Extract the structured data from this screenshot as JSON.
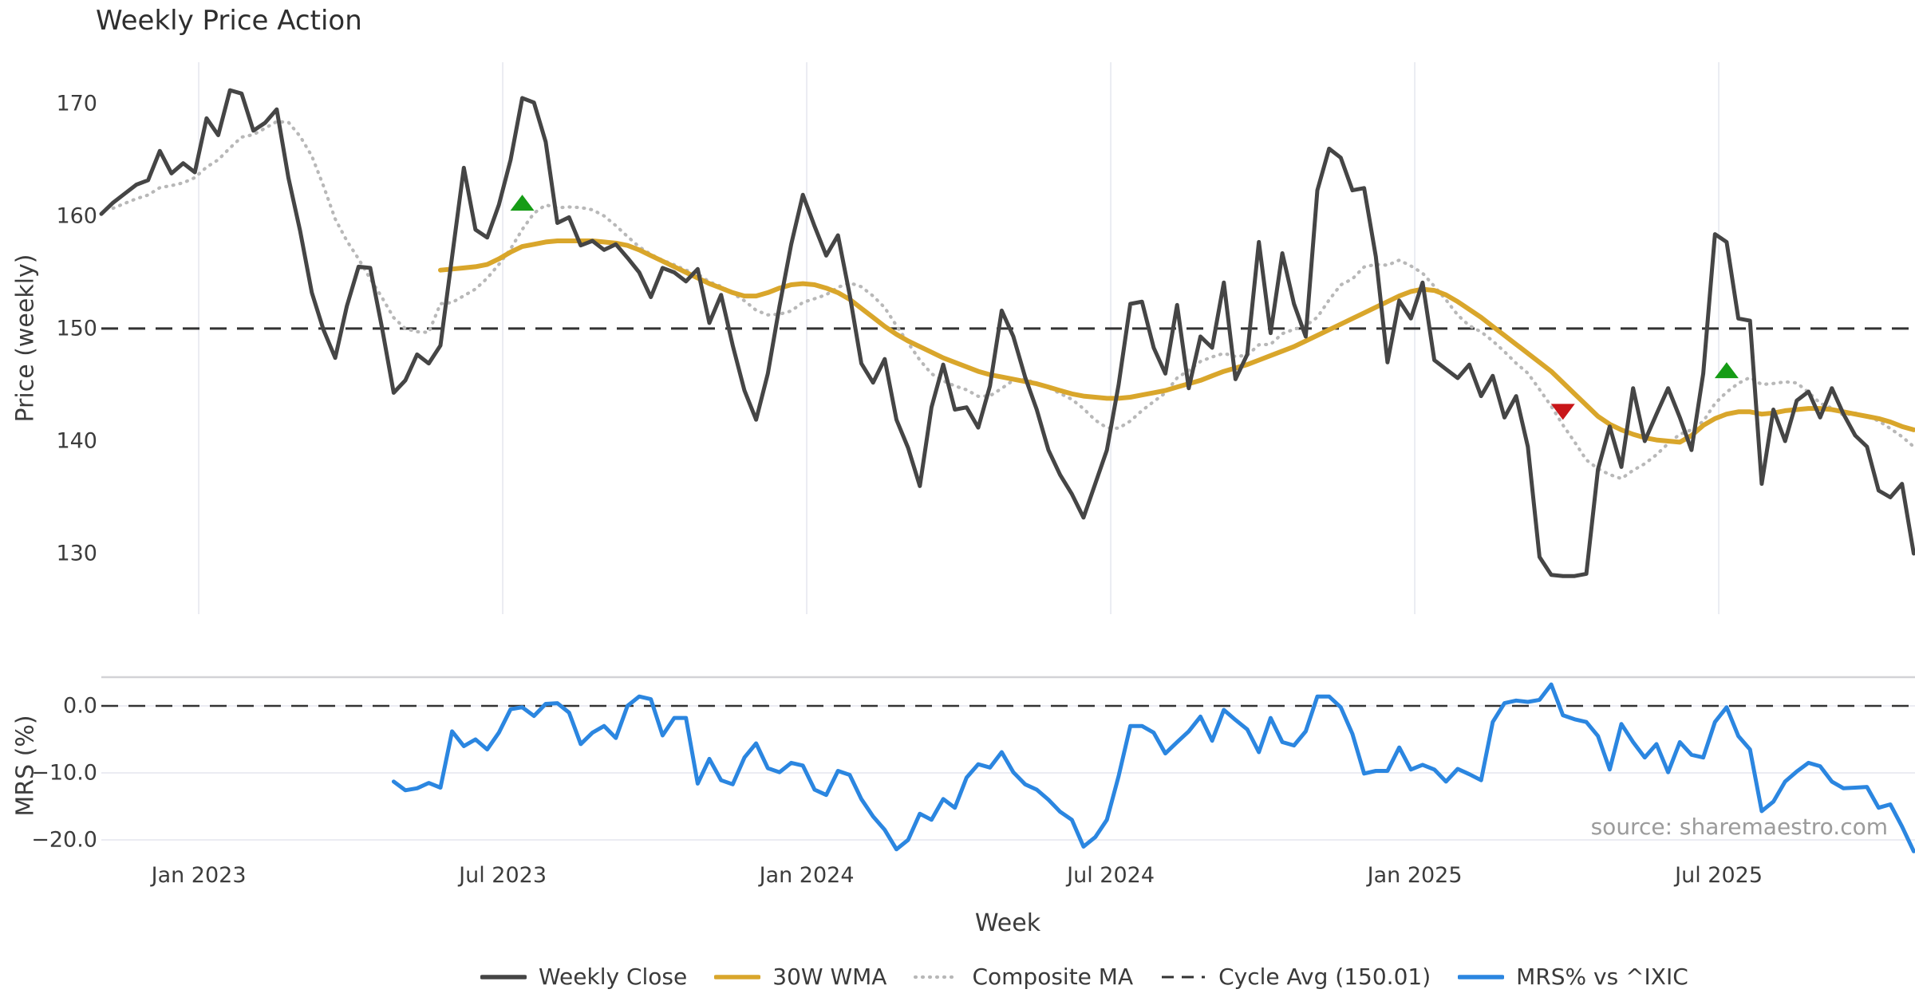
{
  "title": "Weekly Price Action",
  "watermark": "source: sharemaestro.com",
  "colors": {
    "close": "#454545",
    "wma": "#d9a62b",
    "composite": "#b8b8b8",
    "cycle": "#333333",
    "mrs": "#2b86e0",
    "buy": "#169c16",
    "sell": "#c81619",
    "grid": "#ebecf2",
    "divider": "#d2d2d6",
    "text": "#3c3c3c",
    "muted": "#9b9b9b"
  },
  "xaxis": {
    "label": "Week",
    "ticks": [
      {
        "week": 8.33,
        "label": "Jan 2023"
      },
      {
        "week": 34.33,
        "label": "Jul 2023"
      },
      {
        "week": 60.33,
        "label": "Jan 2024"
      },
      {
        "week": 86.33,
        "label": "Jul 2024"
      },
      {
        "week": 112.33,
        "label": "Jan 2025"
      },
      {
        "week": 138.33,
        "label": "Jul 2025"
      }
    ]
  },
  "legend": [
    {
      "label": "Weekly Close",
      "style": "solid",
      "color": "close"
    },
    {
      "label": "30W WMA",
      "style": "solid",
      "color": "wma"
    },
    {
      "label": "Composite MA",
      "style": "dotted",
      "color": "composite"
    },
    {
      "label": "Cycle Avg (150.01)",
      "style": "dashed",
      "color": "cycle"
    },
    {
      "label": "MRS% vs ^IXIC",
      "style": "solid",
      "color": "mrs"
    }
  ],
  "chart_data": [
    {
      "id": "price-panel",
      "type": "line",
      "ylabel": "Price (weekly)",
      "ylim": [
        124.6,
        173.8
      ],
      "grid": "vertical-only",
      "yticks": [
        {
          "value": 130,
          "label": "130"
        },
        {
          "value": 140,
          "label": "140"
        },
        {
          "value": 150,
          "label": "150"
        },
        {
          "value": 160,
          "label": "160"
        },
        {
          "value": 170,
          "label": "170"
        }
      ],
      "series": [
        {
          "name": "Weekly Close",
          "style": "solid",
          "color": "close",
          "start_week": 0,
          "values": [
            160.2,
            161.2,
            162.0,
            162.8,
            163.2,
            165.8,
            163.8,
            164.7,
            163.9,
            168.7,
            167.2,
            171.2,
            170.9,
            167.6,
            168.3,
            169.5,
            163.4,
            158.7,
            153.2,
            149.9,
            147.4,
            152.0,
            155.5,
            155.4,
            150.1,
            144.3,
            145.4,
            147.7,
            146.9,
            148.5,
            156.4,
            164.3,
            158.8,
            158.1,
            161.0,
            165.0,
            170.5,
            170.1,
            166.6,
            159.4,
            159.9,
            157.4,
            157.8,
            157.0,
            157.5,
            156.3,
            155.0,
            152.8,
            155.4,
            155.0,
            154.2,
            155.3,
            150.5,
            153.0,
            148.5,
            144.5,
            141.9,
            146.0,
            152.0,
            157.5,
            161.9,
            159.1,
            156.5,
            158.3,
            153.0,
            146.9,
            145.2,
            147.3,
            141.9,
            139.4,
            136.0,
            143.0,
            146.8,
            142.8,
            143.0,
            141.2,
            144.9,
            151.6,
            149.3,
            145.7,
            142.8,
            139.2,
            137.0,
            135.3,
            133.2,
            136.2,
            139.2,
            145.0,
            152.2,
            152.4,
            148.3,
            146.0,
            152.1,
            144.7,
            149.3,
            148.3,
            154.1,
            145.5,
            147.7,
            157.7,
            149.6,
            156.7,
            152.2,
            149.3,
            162.3,
            166.0,
            165.2,
            162.3,
            162.5,
            156.4,
            147.0,
            152.5,
            150.9,
            154.1,
            147.2,
            146.4,
            145.6,
            146.8,
            144.0,
            145.8,
            142.1,
            144.0,
            139.5,
            129.7,
            128.1,
            128.0,
            128.0,
            128.2,
            137.5,
            141.3,
            137.7,
            144.7,
            140.0,
            142.4,
            144.7,
            142.1,
            139.2,
            146.0,
            158.4,
            157.7,
            150.9,
            150.7,
            136.2,
            142.8,
            140.0,
            143.6,
            144.4,
            142.1,
            144.7,
            142.4,
            140.5,
            139.5,
            135.6,
            135.0,
            136.2,
            130.0
          ]
        },
        {
          "name": "30W WMA",
          "style": "solid",
          "color": "wma",
          "start_week": 29,
          "values": [
            155.2,
            155.3,
            155.4,
            155.5,
            155.7,
            156.2,
            156.8,
            157.3,
            157.5,
            157.7,
            157.8,
            157.8,
            157.8,
            157.8,
            157.7,
            157.6,
            157.4,
            157.0,
            156.5,
            156.0,
            155.5,
            155.0,
            154.5,
            154.0,
            153.6,
            153.2,
            152.9,
            152.9,
            153.2,
            153.6,
            153.9,
            154.0,
            153.9,
            153.6,
            153.2,
            152.6,
            151.8,
            151.0,
            150.2,
            149.5,
            148.9,
            148.4,
            147.9,
            147.4,
            147.0,
            146.6,
            146.2,
            145.9,
            145.7,
            145.5,
            145.3,
            145.1,
            144.8,
            144.5,
            144.2,
            144.0,
            143.9,
            143.8,
            143.8,
            143.9,
            144.1,
            144.3,
            144.5,
            144.8,
            145.1,
            145.4,
            145.8,
            146.2,
            146.5,
            146.8,
            147.2,
            147.6,
            148.0,
            148.4,
            148.9,
            149.4,
            149.9,
            150.4,
            150.9,
            151.4,
            151.9,
            152.4,
            152.9,
            153.3,
            153.5,
            153.4,
            153.0,
            152.4,
            151.7,
            151.0,
            150.2,
            149.4,
            148.6,
            147.8,
            147.0,
            146.2,
            145.2,
            144.2,
            143.2,
            142.2,
            141.5,
            141.0,
            140.6,
            140.3,
            140.1,
            140.0,
            139.9,
            140.5,
            141.4,
            142.0,
            142.4,
            142.6,
            142.6,
            142.4,
            142.5,
            142.7,
            142.8,
            142.9,
            142.9,
            142.8,
            142.6,
            142.4,
            142.2,
            142.0,
            141.7,
            141.3,
            141.0
          ]
        },
        {
          "name": "Composite MA",
          "style": "dotted",
          "color": "composite",
          "derived": "mean of trailing 8-week average of Weekly Close and 30W WMA"
        },
        {
          "name": "Cycle Avg (150.01)",
          "style": "dashed",
          "color": "cycle",
          "constant": 150.01
        }
      ],
      "markers": [
        {
          "shape": "triangle-up",
          "color": "buy",
          "week": 36,
          "price": 161.2
        },
        {
          "shape": "triangle-down",
          "color": "sell",
          "week": 125,
          "price": 142.6
        },
        {
          "shape": "triangle-up",
          "color": "buy",
          "week": 139,
          "price": 146.3
        }
      ]
    },
    {
      "id": "mrs-panel",
      "type": "line",
      "ylabel": "MRS (%)",
      "ylim": [
        -22.8,
        4.2
      ],
      "grid": "horizontal-only",
      "zero_line": 0.0,
      "yticks": [
        {
          "value": 0,
          "label": "0.0"
        },
        {
          "value": -10,
          "label": "−10.0"
        },
        {
          "value": -20,
          "label": "−20.0"
        }
      ],
      "series": [
        {
          "name": "MRS% vs ^IXIC",
          "style": "solid",
          "color": "mrs",
          "start_week": 25,
          "values": [
            -11.3,
            -12.6,
            -12.3,
            -11.5,
            -12.2,
            -3.8,
            -6.0,
            -5.0,
            -6.5,
            -4.0,
            -0.5,
            -0.2,
            -1.5,
            0.3,
            0.4,
            -1.0,
            -5.7,
            -4.0,
            -3.0,
            -4.8,
            0.0,
            1.4,
            1.0,
            -4.4,
            -1.8,
            -1.8,
            -11.6,
            -7.9,
            -11.1,
            -11.7,
            -7.7,
            -5.6,
            -9.3,
            -9.9,
            -8.5,
            -8.9,
            -12.5,
            -13.3,
            -9.7,
            -10.3,
            -13.9,
            -16.5,
            -18.5,
            -21.4,
            -20.0,
            -16.1,
            -17.0,
            -13.9,
            -15.2,
            -10.7,
            -8.7,
            -9.2,
            -6.9,
            -9.9,
            -11.7,
            -12.5,
            -14.0,
            -15.8,
            -17.0,
            -21.0,
            -19.6,
            -17.0,
            -10.5,
            -3.0,
            -3.0,
            -4.0,
            -7.1,
            -5.4,
            -3.8,
            -1.6,
            -5.2,
            -0.6,
            -2.1,
            -3.5,
            -6.9,
            -1.8,
            -5.4,
            -5.9,
            -3.8,
            1.4,
            1.4,
            -0.2,
            -4.2,
            -10.1,
            -9.7,
            -9.7,
            -6.2,
            -9.5,
            -8.8,
            -9.5,
            -11.3,
            -9.4,
            -10.2,
            -11.1,
            -2.4,
            0.4,
            0.8,
            0.6,
            0.9,
            3.2,
            -1.4,
            -2.0,
            -2.4,
            -4.5,
            -9.5,
            -2.7,
            -5.4,
            -7.7,
            -5.7,
            -9.9,
            -5.4,
            -7.3,
            -7.7,
            -2.4,
            -0.2,
            -4.5,
            -6.5,
            -15.7,
            -14.3,
            -11.3,
            -9.8,
            -8.5,
            -9.0,
            -11.3,
            -12.3,
            -12.2,
            -12.1,
            -15.2,
            -14.7,
            -18.0,
            -21.7
          ]
        }
      ]
    }
  ],
  "week_axis": {
    "weeks_total": 156
  }
}
